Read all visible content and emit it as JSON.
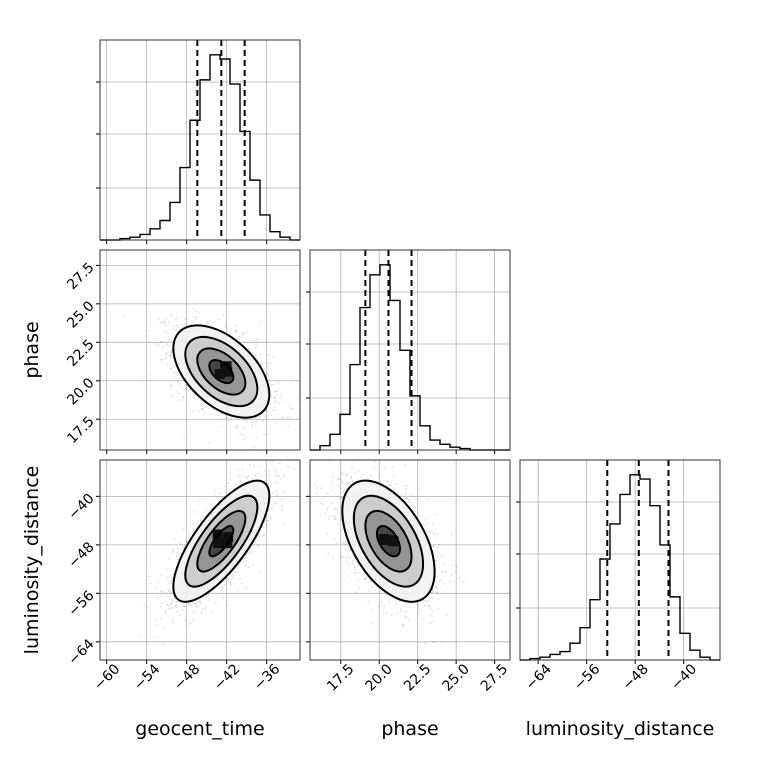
{
  "chart_data": {
    "type": "corner",
    "parameters": [
      "geocent_time",
      "phase",
      "luminosity_distance"
    ],
    "axis_labels": {
      "geocent_time": "geocent_time",
      "phase": "phase",
      "luminosity_distance": "luminosity_distance"
    },
    "ranges": {
      "geocent_time": [
        -61,
        -31
      ],
      "phase": [
        15.5,
        28.5
      ],
      "luminosity_distance": [
        -67,
        -34
      ]
    },
    "ticks": {
      "geocent_time": [
        -60,
        -54,
        -48,
        -42,
        -36
      ],
      "phase": [
        17.5,
        20.0,
        22.5,
        25.0,
        27.5
      ],
      "luminosity_distance": [
        -64,
        -56,
        -48,
        -40
      ]
    },
    "tick_labels": {
      "geocent_time": [
        "−60",
        "−54",
        "−48",
        "−42",
        "−36"
      ],
      "phase": [
        "17.5",
        "20.0",
        "22.5",
        "25.0",
        "27.5"
      ],
      "luminosity_distance": [
        "−64",
        "−56",
        "−48",
        "−40"
      ]
    },
    "quantiles": {
      "geocent_time": [
        -46.4,
        -42.8,
        -39.3
      ],
      "phase": [
        19.1,
        20.6,
        22.1
      ],
      "luminosity_distance": [
        -52.6,
        -47.4,
        -42.5
      ]
    },
    "histograms": {
      "geocent_time": {
        "edges": [
          -61,
          -59.5,
          -58,
          -56.5,
          -55,
          -53.5,
          -52,
          -50.5,
          -49,
          -47.5,
          -46,
          -44.5,
          -43,
          -41.5,
          -40,
          -38.5,
          -37,
          -35.5,
          -34,
          -32.5,
          -31
        ],
        "counts": [
          0,
          0,
          1,
          2,
          4,
          8,
          14,
          27,
          52,
          86,
          115,
          133,
          130,
          112,
          78,
          43,
          18,
          6,
          2,
          0
        ]
      },
      "phase": {
        "edges": [
          15.5,
          16.15,
          16.8,
          17.45,
          18.1,
          18.75,
          19.4,
          20.05,
          20.7,
          21.35,
          22.0,
          22.65,
          23.3,
          23.95,
          24.6,
          25.25,
          25.9,
          26.55,
          27.2,
          27.85,
          28.5
        ],
        "counts": [
          0,
          3,
          11,
          25,
          60,
          100,
          123,
          130,
          105,
          70,
          38,
          17,
          7,
          4,
          2,
          1,
          0,
          0,
          0,
          0
        ]
      },
      "luminosity_distance": {
        "edges": [
          -67,
          -65.35,
          -63.7,
          -62.05,
          -60.4,
          -58.75,
          -57.1,
          -55.45,
          -53.8,
          -52.15,
          -50.5,
          -48.85,
          -47.2,
          -45.55,
          -43.9,
          -42.25,
          -40.6,
          -38.95,
          -37.3,
          -35.65,
          -34
        ],
        "counts": [
          0,
          1,
          2,
          4,
          6,
          12,
          23,
          43,
          72,
          97,
          118,
          132,
          129,
          110,
          82,
          45,
          19,
          7,
          2,
          0
        ]
      }
    },
    "joint": [
      {
        "x": "geocent_time",
        "y": "phase",
        "mean": [
          -42.8,
          20.6
        ],
        "sd": [
          3.6,
          1.5
        ],
        "rho": -0.5
      },
      {
        "x": "geocent_time",
        "y": "luminosity_distance",
        "mean": [
          -42.8,
          -47.4
        ],
        "sd": [
          3.6,
          5.0
        ],
        "rho": 0.75
      },
      {
        "x": "phase",
        "y": "luminosity_distance",
        "mean": [
          20.6,
          -47.4
        ],
        "sd": [
          1.5,
          5.0
        ],
        "rho": -0.5
      }
    ],
    "contour_levels_sigma": [
      0.5,
      1.0,
      1.5,
      2.0
    ],
    "grid": true
  }
}
